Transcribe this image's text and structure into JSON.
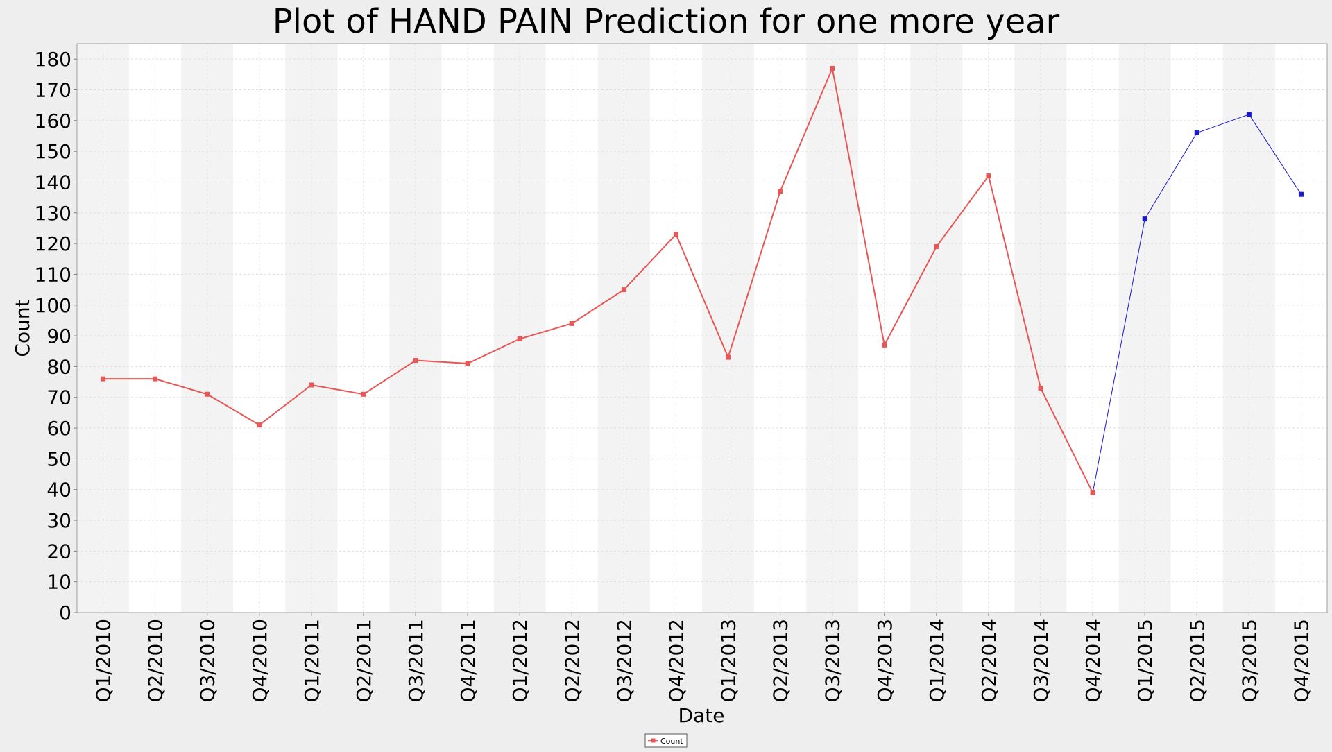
{
  "chart_data": {
    "type": "line",
    "title": "Plot of HAND PAIN Prediction for one more year",
    "xlabel": "Date",
    "ylabel": "Count",
    "ylim": [
      0,
      185
    ],
    "yticks": [
      0,
      10,
      20,
      30,
      40,
      50,
      60,
      70,
      80,
      90,
      100,
      110,
      120,
      130,
      140,
      150,
      160,
      170,
      180
    ],
    "grid": true,
    "legend_position": "bottom-center",
    "categories": [
      "Q1/2010",
      "Q2/2010",
      "Q3/2010",
      "Q4/2010",
      "Q1/2011",
      "Q2/2011",
      "Q3/2011",
      "Q4/2011",
      "Q1/2012",
      "Q2/2012",
      "Q3/2012",
      "Q4/2012",
      "Q1/2013",
      "Q2/2013",
      "Q3/2013",
      "Q4/2013",
      "Q1/2014",
      "Q2/2014",
      "Q3/2014",
      "Q4/2014",
      "Q1/2015",
      "Q2/2015",
      "Q3/2015",
      "Q4/2015"
    ],
    "series": [
      {
        "name": "Count",
        "color": "#e85656",
        "values": [
          76,
          76,
          71,
          61,
          74,
          71,
          82,
          81,
          89,
          94,
          105,
          123,
          83,
          137,
          177,
          87,
          119,
          142,
          73,
          39,
          null,
          null,
          null,
          null
        ]
      },
      {
        "color": "#1818cc",
        "values": [
          null,
          null,
          null,
          null,
          null,
          null,
          null,
          null,
          null,
          null,
          null,
          null,
          null,
          null,
          null,
          null,
          null,
          null,
          null,
          39,
          128,
          156,
          162,
          136
        ]
      }
    ],
    "band_colors": [
      "#f3f3f3",
      "#ffffff"
    ],
    "plot_background": "#ffffff",
    "page_background": "#eeeeee"
  }
}
